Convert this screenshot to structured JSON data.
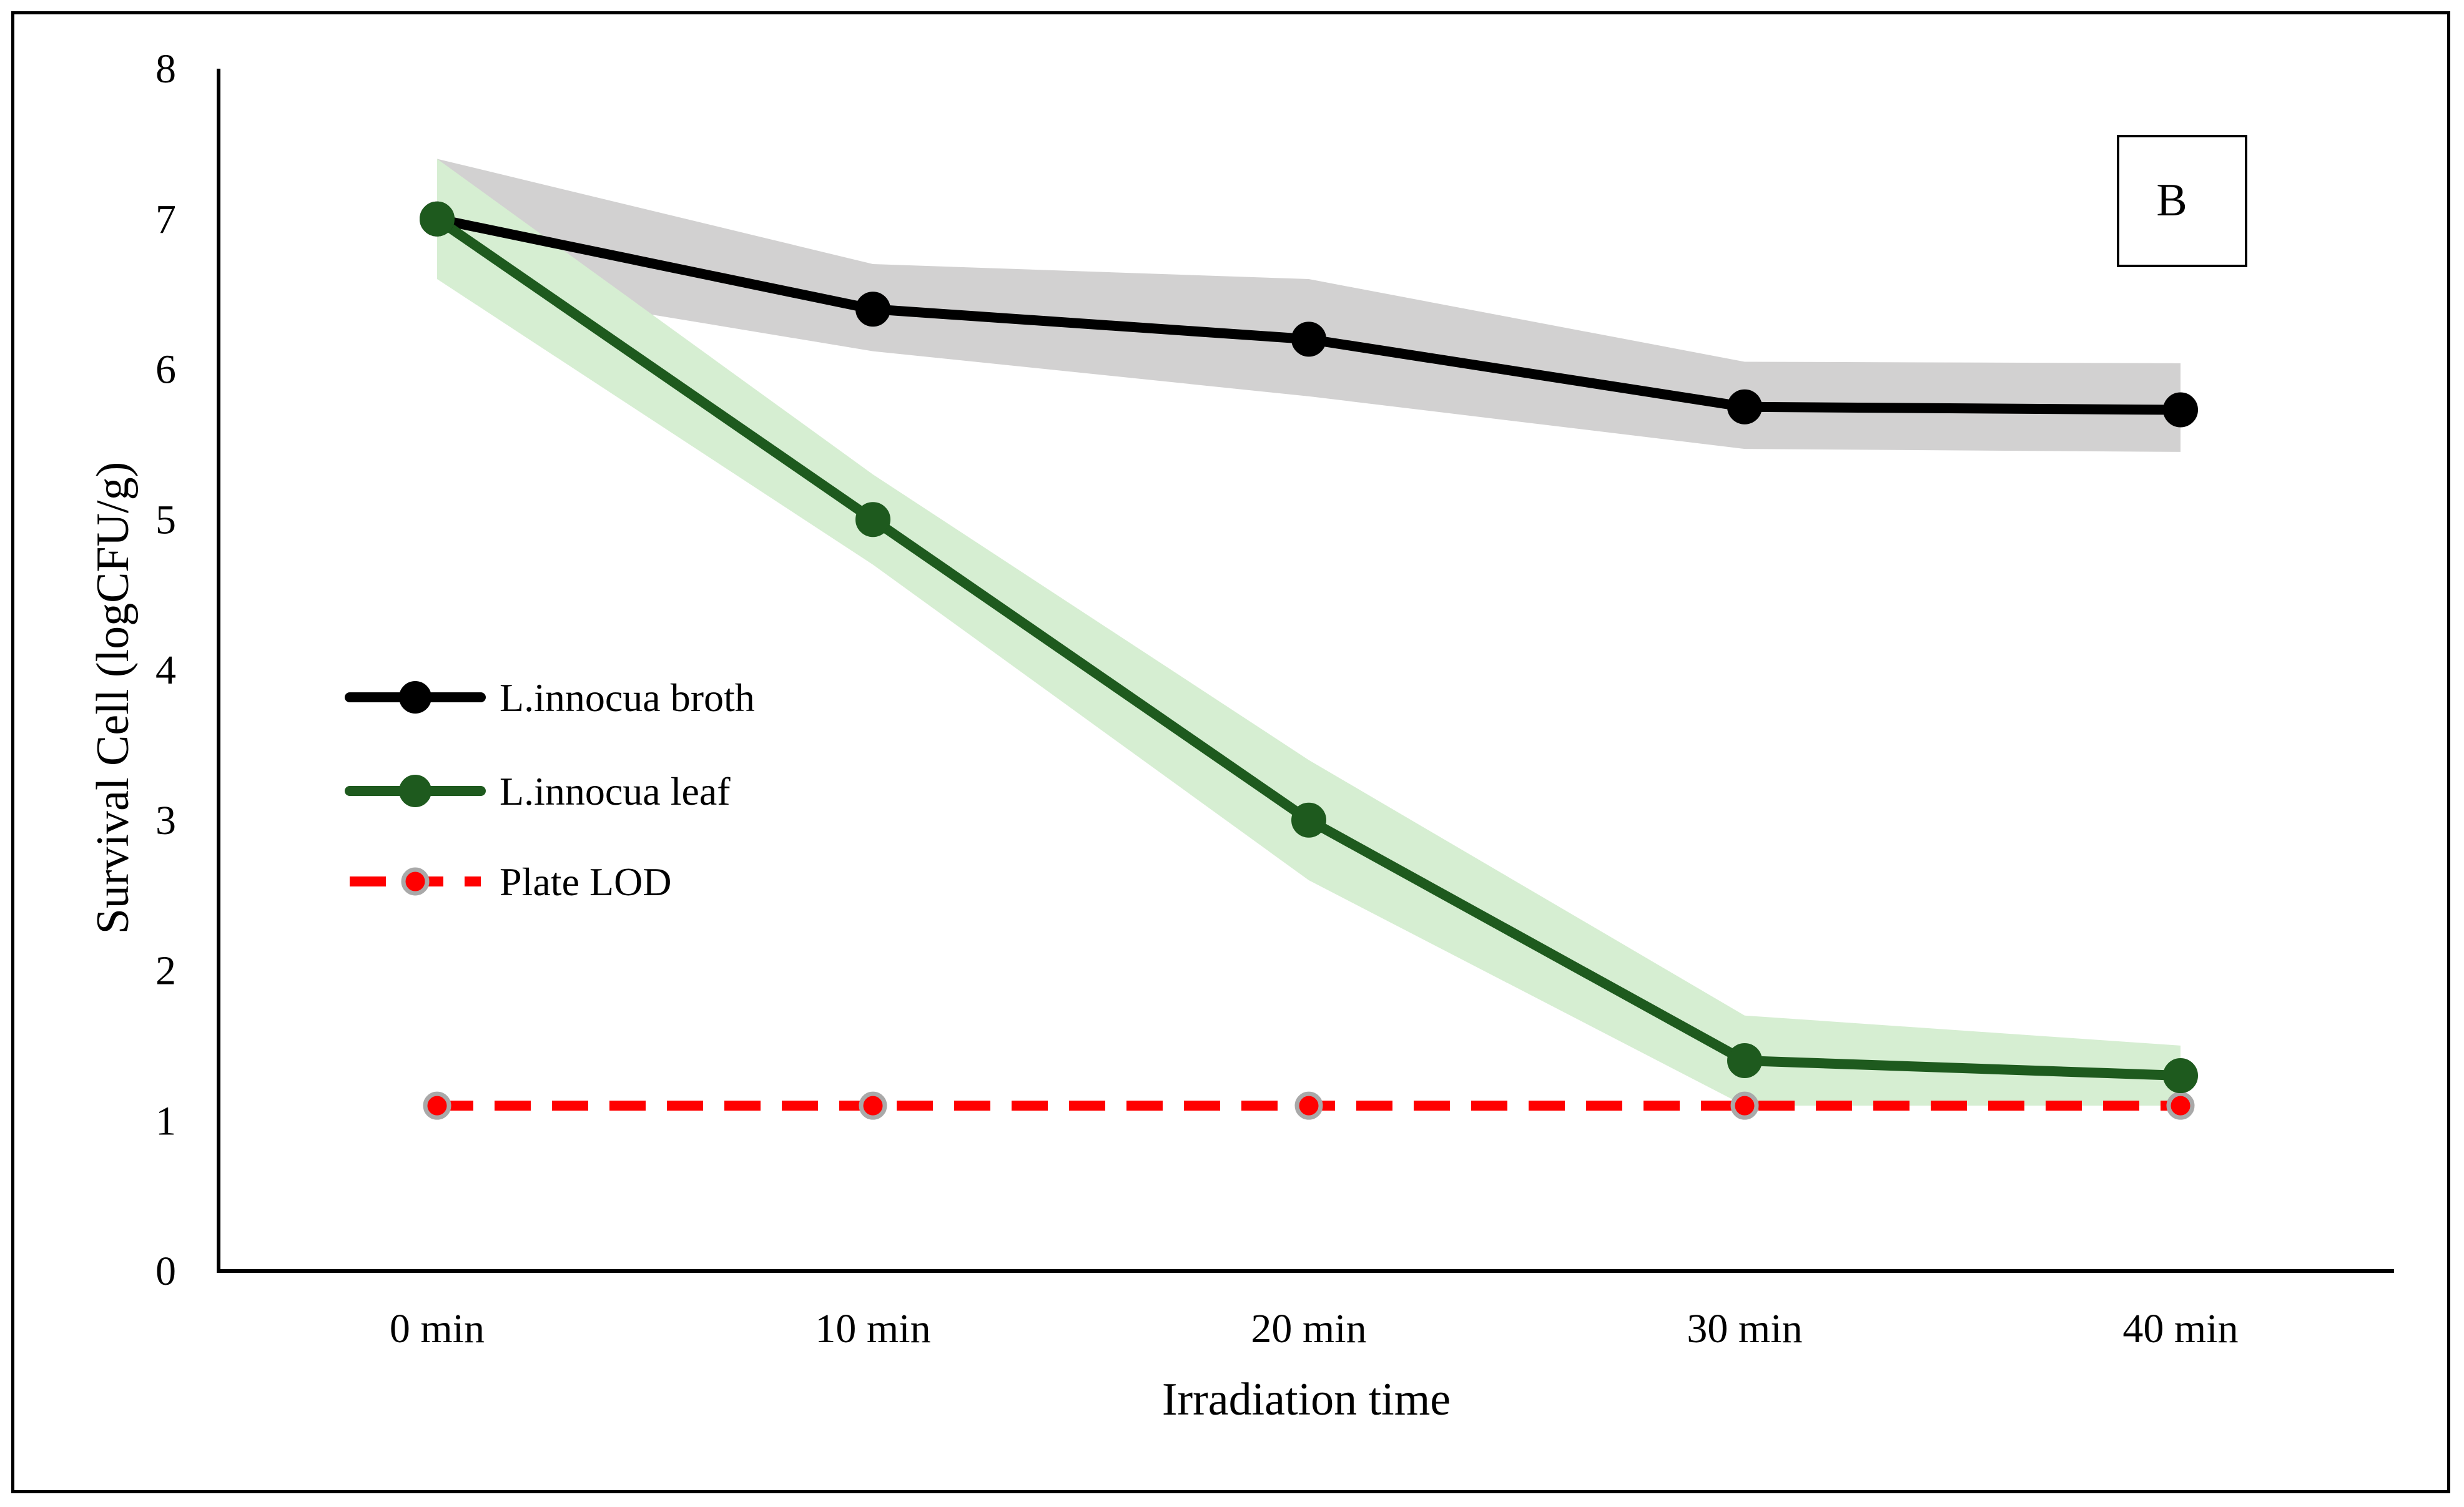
{
  "chart_data": {
    "type": "line",
    "title": "",
    "panel_label": "B",
    "xlabel": "Irradiation time",
    "ylabel": "Survival Cell (logCFU/g)",
    "categories": [
      "0 min",
      "10 min",
      "20 min",
      "30 min",
      "40 min"
    ],
    "ylim": [
      0,
      8
    ],
    "yticks": [
      0,
      1,
      2,
      3,
      4,
      5,
      6,
      7,
      8
    ],
    "grid": false,
    "legend_position": "left-middle",
    "series": [
      {
        "name": "L.innocua broth",
        "color": "#000000",
        "band_color": "#d2d1d1",
        "values": [
          7.0,
          6.4,
          6.2,
          5.75,
          5.73
        ],
        "upper": [
          7.4,
          6.7,
          6.6,
          6.05,
          6.04
        ],
        "lower": [
          6.6,
          6.12,
          5.82,
          5.47,
          5.45
        ],
        "dashed": false
      },
      {
        "name": "L.innocua leaf",
        "color": "#1e5a1e",
        "band_color": "#d6eed2",
        "values": [
          7.0,
          5.0,
          3.0,
          1.4,
          1.3
        ],
        "upper": [
          7.4,
          5.3,
          3.4,
          1.7,
          1.5
        ],
        "lower": [
          6.6,
          4.7,
          2.6,
          1.1,
          1.1
        ],
        "dashed": false
      },
      {
        "name": "Plate LOD",
        "color": "#ff0000",
        "marker_edge": "#a9a9a9",
        "values": [
          1.1,
          1.1,
          1.1,
          1.1,
          1.1
        ],
        "dashed": true
      }
    ]
  }
}
